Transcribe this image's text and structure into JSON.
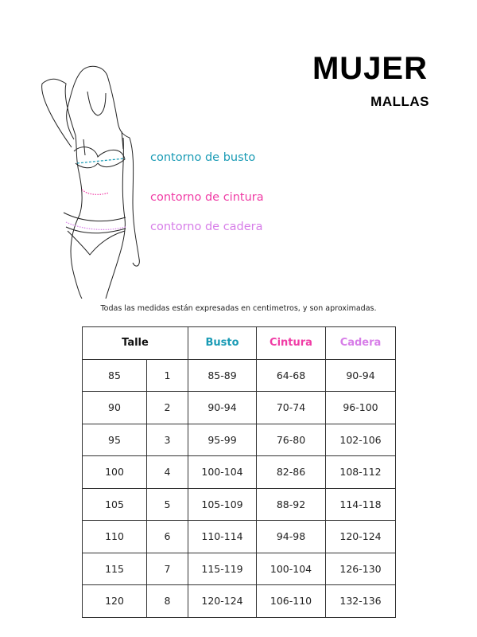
{
  "header": {
    "title": "MUJER",
    "subtitle": "MALLAS"
  },
  "figure_labels": [
    {
      "text": "contorno de busto",
      "color": "#1a9bb5"
    },
    {
      "text": "contorno de cintura",
      "color": "#f03ca5"
    },
    {
      "text": "contorno de cadera",
      "color": "#d77de8"
    }
  ],
  "note": "Todas las medidas están expresadas en centimetros, y son aproximadas.",
  "table": {
    "headers": [
      {
        "text": "Talle",
        "color": "#111111"
      },
      {
        "text": "Busto",
        "color": "#1a9bb5"
      },
      {
        "text": "Cintura",
        "color": "#f03ca5"
      },
      {
        "text": "Cadera",
        "color": "#d77de8"
      }
    ],
    "rows": [
      [
        "85",
        "1",
        "85-89",
        "64-68",
        "90-94"
      ],
      [
        "90",
        "2",
        "90-94",
        "70-74",
        "96-100"
      ],
      [
        "95",
        "3",
        "95-99",
        "76-80",
        "102-106"
      ],
      [
        "100",
        "4",
        "100-104",
        "82-86",
        "108-112"
      ],
      [
        "105",
        "5",
        "105-109",
        "88-92",
        "114-118"
      ],
      [
        "110",
        "6",
        "110-114",
        "94-98",
        "120-124"
      ],
      [
        "115",
        "7",
        "115-119",
        "100-104",
        "126-130"
      ],
      [
        "120",
        "8",
        "120-124",
        "106-110",
        "132-136"
      ]
    ]
  }
}
